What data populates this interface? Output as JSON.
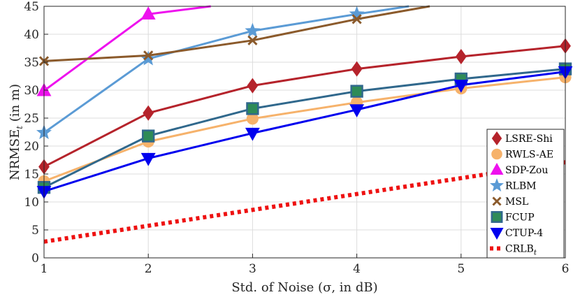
{
  "chart_data": {
    "type": "line",
    "title": "",
    "xlabel": "Std. of Noise (σ, in dB)",
    "ylabel": "NRMSE",
    "ylabel_sub": "t",
    "ylabel_unit": " (in m)",
    "xlim": [
      1,
      6
    ],
    "ylim": [
      0,
      45
    ],
    "xticks": [
      1,
      2,
      3,
      4,
      5,
      6
    ],
    "yticks": [
      0,
      5,
      10,
      15,
      20,
      25,
      30,
      35,
      40,
      45
    ],
    "grid": true,
    "legend_position": "bottom-right",
    "series": [
      {
        "name": "LSRE-Shi",
        "sub": "",
        "color": "#b5232b",
        "marker": "diamond",
        "style": "solid",
        "x": [
          1,
          2,
          3,
          4,
          5,
          6
        ],
        "y": [
          16.3,
          25.9,
          30.8,
          33.8,
          36.0,
          37.9
        ]
      },
      {
        "name": "RWLS-AE",
        "sub": "",
        "color": "#f6b26b",
        "marker": "circle",
        "style": "solid",
        "x": [
          1,
          2,
          3,
          4,
          5,
          6
        ],
        "y": [
          13.7,
          20.8,
          24.9,
          27.8,
          30.3,
          32.3
        ]
      },
      {
        "name": "SDP-Zou",
        "sub": "",
        "color": "#ee11ee",
        "marker": "triangle-up",
        "style": "solid",
        "x": [
          1,
          2,
          2.6
        ],
        "y": [
          29.9,
          43.6,
          45.0
        ]
      },
      {
        "name": "RLBM",
        "sub": "",
        "color": "#5b9bd5",
        "marker": "star",
        "style": "solid",
        "x": [
          1,
          2,
          3,
          4,
          4.5
        ],
        "y": [
          22.4,
          35.6,
          40.6,
          43.6,
          45.0
        ]
      },
      {
        "name": "MSL",
        "sub": "",
        "color": "#8b5a2b",
        "marker": "x",
        "style": "solid",
        "x": [
          1,
          2,
          3,
          4,
          4.7
        ],
        "y": [
          35.2,
          36.2,
          38.9,
          42.7,
          45.0
        ]
      },
      {
        "name": "FCUP",
        "sub": "",
        "color": "#30688c",
        "marker": "square",
        "style": "solid",
        "x": [
          1,
          2,
          3,
          4,
          5,
          6
        ],
        "y": [
          12.6,
          21.8,
          26.7,
          29.8,
          32.0,
          33.8
        ]
      },
      {
        "name": "CTUP-4",
        "sub": "",
        "color": "#0000ee",
        "marker": "triangle-down",
        "style": "solid",
        "x": [
          1,
          2,
          3,
          4,
          5,
          6
        ],
        "y": [
          11.9,
          17.8,
          22.3,
          26.5,
          30.9,
          33.3
        ]
      },
      {
        "name": "CRLB",
        "sub": "t",
        "color": "#ee1111",
        "marker": "none",
        "style": "dotted",
        "x": [
          1,
          6
        ],
        "y": [
          2.9,
          17.1
        ]
      }
    ]
  }
}
